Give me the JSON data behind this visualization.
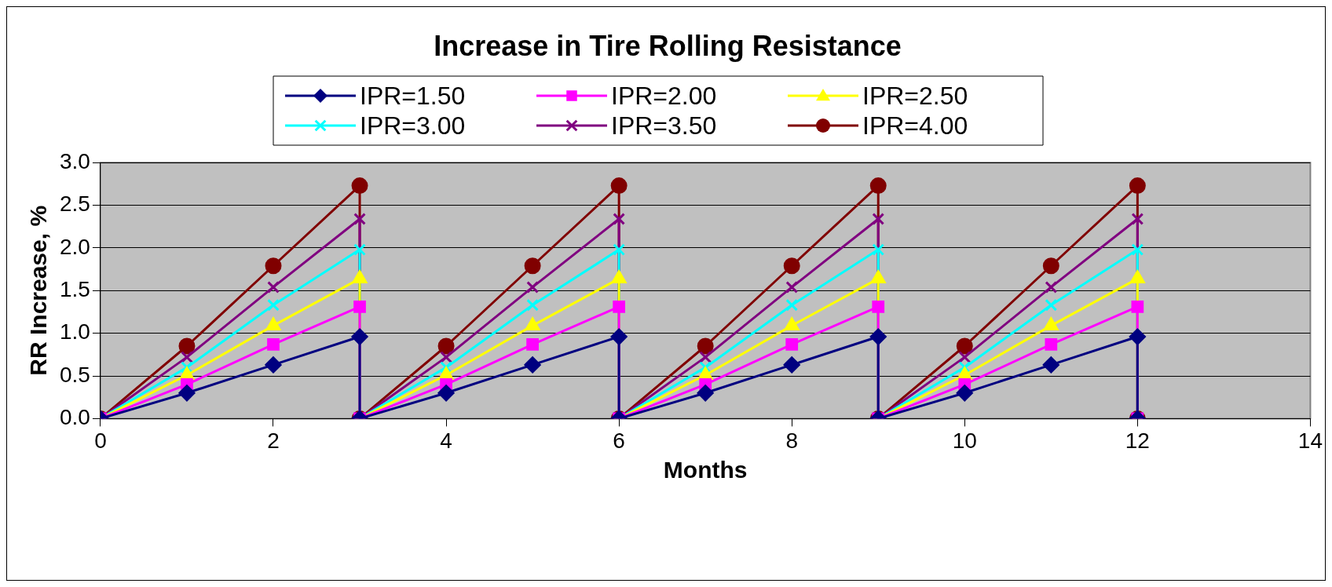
{
  "chart_data": {
    "type": "line",
    "title": "Increase in Tire Rolling Resistance",
    "xlabel": "Months",
    "ylabel": "RR Increase, %",
    "x": [
      0,
      1,
      2,
      3,
      3,
      4,
      5,
      6,
      6,
      7,
      8,
      9,
      9,
      10,
      11,
      12,
      12
    ],
    "series": [
      {
        "name": "IPR=1.50",
        "color": "#000080",
        "marker": "diamond",
        "values": [
          0,
          0.3,
          0.63,
          0.96,
          0,
          0.3,
          0.63,
          0.96,
          0,
          0.3,
          0.63,
          0.96,
          0,
          0.3,
          0.63,
          0.96,
          0
        ]
      },
      {
        "name": "IPR=2.00",
        "color": "#ff00ff",
        "marker": "square",
        "values": [
          0,
          0.4,
          0.87,
          1.31,
          0,
          0.4,
          0.87,
          1.31,
          0,
          0.4,
          0.87,
          1.31,
          0,
          0.4,
          0.87,
          1.31,
          0
        ]
      },
      {
        "name": "IPR=2.50",
        "color": "#ffff00",
        "marker": "triangle",
        "values": [
          0,
          0.51,
          1.09,
          1.64,
          0,
          0.51,
          1.09,
          1.64,
          0,
          0.51,
          1.09,
          1.64,
          0,
          0.51,
          1.09,
          1.64,
          0
        ]
      },
      {
        "name": "IPR=3.00",
        "color": "#00ffff",
        "marker": "cross",
        "values": [
          0,
          0.6,
          1.33,
          1.98,
          0,
          0.6,
          1.33,
          1.98,
          0,
          0.6,
          1.33,
          1.98,
          0,
          0.6,
          1.33,
          1.98,
          0
        ]
      },
      {
        "name": "IPR=3.50",
        "color": "#800080",
        "marker": "cross",
        "values": [
          0,
          0.72,
          1.54,
          2.34,
          0,
          0.72,
          1.54,
          2.34,
          0,
          0.72,
          1.54,
          2.34,
          0,
          0.72,
          1.54,
          2.34,
          0
        ]
      },
      {
        "name": "IPR=4.00",
        "color": "#800000",
        "marker": "circle",
        "values": [
          0,
          0.85,
          1.79,
          2.73,
          0,
          0.85,
          1.79,
          2.73,
          0,
          0.85,
          1.79,
          2.73,
          0,
          0.85,
          1.79,
          2.73,
          0
        ]
      }
    ],
    "xlim": [
      0,
      14
    ],
    "xticks": [
      0,
      2,
      4,
      6,
      8,
      10,
      12,
      14
    ],
    "ylim": [
      0,
      3
    ],
    "yticks": [
      {
        "value": 0,
        "label": "0.0"
      },
      {
        "value": 0.5,
        "label": "0.5"
      },
      {
        "value": 1,
        "label": "1.0"
      },
      {
        "value": 1.5,
        "label": "1.5"
      },
      {
        "value": 2,
        "label": "2.0"
      },
      {
        "value": 2.5,
        "label": "2.5"
      },
      {
        "value": 3,
        "label": "3.0"
      }
    ],
    "grid": "y",
    "legend": "top",
    "line_style": "solid"
  }
}
